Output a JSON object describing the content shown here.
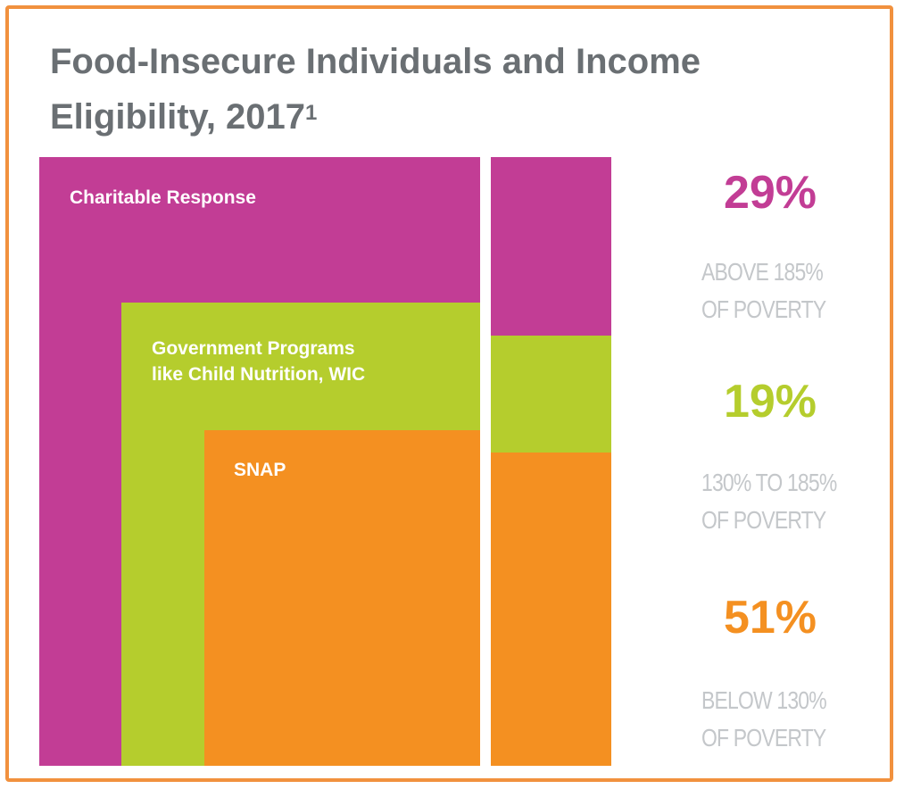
{
  "title": "Food-Insecure Individuals and Income Eligibility, 2017",
  "title_superscript": "1",
  "colors": {
    "charitable": "#c23d95",
    "government": "#b5cd2d",
    "snap": "#f49021",
    "frame": "#f1913e",
    "title": "#6a6f73",
    "description": "#c4c7ca"
  },
  "chart_data": {
    "type": "nested-area",
    "title": "Food-Insecure Individuals and Income Eligibility, 2017",
    "programs": [
      {
        "name": "Charitable Response",
        "label": "Charitable Response"
      },
      {
        "name": "Government Programs like Child Nutrition, WIC",
        "label": "Government Programs\nlike Child Nutrition, WIC"
      },
      {
        "name": "SNAP",
        "label": "SNAP"
      }
    ],
    "income_groups": [
      {
        "percent": "29%",
        "value": 29,
        "description": "ABOVE 185%\nOF POVERTY",
        "color": "#c23d95"
      },
      {
        "percent": "19%",
        "value": 19,
        "description": "130% TO 185%\nOF POVERTY",
        "color": "#b5cd2d"
      },
      {
        "percent": "51%",
        "value": 51,
        "description": "BELOW 130%\nOF POVERTY",
        "color": "#f49021"
      }
    ]
  }
}
